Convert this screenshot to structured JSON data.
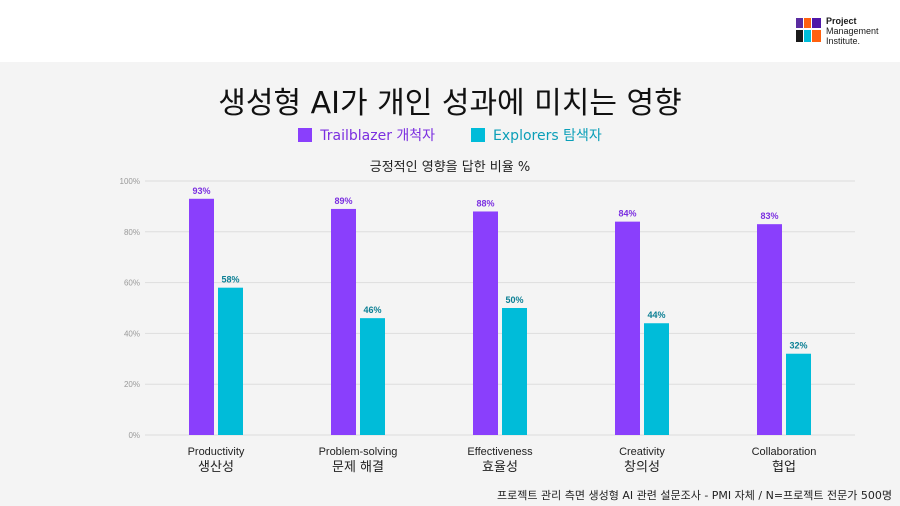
{
  "header": {
    "logo_line1": "Project",
    "logo_line2": "Management",
    "logo_line3": "Institute."
  },
  "chart_data": {
    "type": "bar",
    "title": "생성형 AI가 개인 성과에 미치는 영향",
    "subtitle": "긍정적인 영향을 답한 비율 %",
    "categories": [
      "Productivity",
      "Problem-solving",
      "Effectiveness",
      "Creativity",
      "Collaboration"
    ],
    "categories_ko": [
      "생산성",
      "문제 해결",
      "효율성",
      "창의성",
      "협업"
    ],
    "series": [
      {
        "name": "Trailblazer 개척자",
        "color": "#8a3ffc",
        "label_color": "#7b2fe0",
        "values": [
          93,
          89,
          88,
          84,
          83
        ]
      },
      {
        "name": "Explorers 탐색자",
        "color": "#00bcd9",
        "label_color": "#0b7f94",
        "values": [
          58,
          46,
          50,
          44,
          32
        ]
      }
    ],
    "ylim": [
      0,
      100
    ],
    "yticks": [
      0,
      20,
      40,
      60,
      80,
      100
    ],
    "ytick_labels": [
      "0%",
      "20%",
      "40%",
      "60%",
      "80%",
      "100%"
    ],
    "value_suffix": "%",
    "grid": true,
    "legend_position": "top-center"
  },
  "footnote": "프로젝트 관리 측면 생성형 AI 관련 설문조사 - PMI 자체 / N=프로젝트 전문가 500명"
}
